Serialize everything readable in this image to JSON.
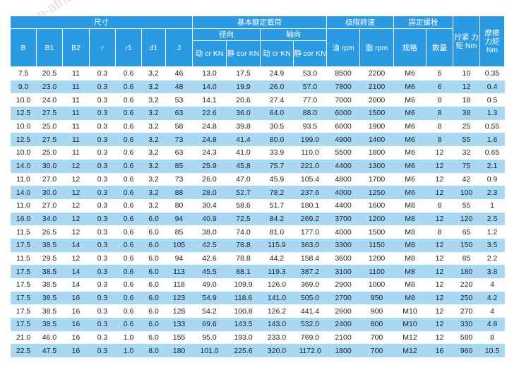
{
  "watermark": "cn-africa.com",
  "header": {
    "group_size": "尺寸",
    "group_load": "基本额定载荷",
    "group_speed": "极限转速",
    "group_bolt": "固定螺栓",
    "radial": "径向",
    "axial": "轴向",
    "col_B": "B",
    "col_B1": "B1",
    "col_B2": "B2",
    "col_r": "r",
    "col_r1": "r1",
    "col_d1": "d1",
    "col_J": "J",
    "dyn_radial": "动 cr KN",
    "static_radial": "静 cor KN",
    "dyn_axial": "动 cr KN",
    "static_axial": "静 cor KN",
    "oil": "油 rpm",
    "grease": "脂 rpm",
    "spec": "规格",
    "count": "数量",
    "torque": "拧紧 力矩 Nm",
    "friction": "摩擦 力矩 Nm"
  },
  "rows": [
    [
      "7.5",
      "20.5",
      "11",
      "0.3",
      "0.6",
      "3.2",
      "46",
      "13.0",
      "17.5",
      "24.9",
      "53.0",
      "8500",
      "2200",
      "M6",
      "6",
      "10",
      "0.35"
    ],
    [
      "9.0",
      "23.0",
      "11",
      "0.3",
      "0.6",
      "3.2",
      "48",
      "14.0",
      "19.9",
      "26.0",
      "57.0",
      "7800",
      "2100",
      "M6",
      "6",
      "12",
      "0.4"
    ],
    [
      "10.0",
      "24.0",
      "11",
      "0.3",
      "0.6",
      "3.2",
      "53",
      "14.1",
      "20.6",
      "27.4",
      "77.0",
      "7000",
      "2000",
      "M6",
      "8",
      "18",
      "0.5"
    ],
    [
      "12.5",
      "27.5",
      "11",
      "0.3",
      "0.6",
      "3.2",
      "63",
      "22.6",
      "36.0",
      "64.0",
      "88.0",
      "6000",
      "1500",
      "M6",
      "8",
      "38",
      "1.3"
    ],
    [
      "10.0",
      "25.0",
      "11",
      "0.3",
      "0.6",
      "3.2",
      "58",
      "24.8",
      "39.8",
      "30.5",
      "93.5",
      "6000",
      "1900",
      "M6",
      "8",
      "25",
      "0.55"
    ],
    [
      "12.5",
      "27.5",
      "11",
      "0.3",
      "0.6",
      "3.2",
      "73",
      "24.8",
      "41.4",
      "80.0",
      "199.0",
      "4900",
      "1400",
      "M6",
      "8",
      "55",
      "1.6"
    ],
    [
      "10.0",
      "25.0",
      "11",
      "0.3",
      "0.6",
      "3.2",
      "63",
      "24.3",
      "41.0",
      "33.9",
      "110.0",
      "5500",
      "1800",
      "M6",
      "12",
      "32",
      "0.65"
    ],
    [
      "14.0",
      "30.0",
      "12",
      "0.3",
      "0.6",
      "3.2",
      "85",
      "25.9",
      "45.8",
      "75.7",
      "221.0",
      "4400",
      "1300",
      "M6",
      "12",
      "75",
      "2.1"
    ],
    [
      "11.0",
      "27.0",
      "12",
      "0.3",
      "0.6",
      "3.2",
      "73",
      "26.0",
      "47.0",
      "45.9",
      "105.4",
      "4800",
      "1700",
      "M6",
      "12",
      "42",
      "0.9"
    ],
    [
      "14.0",
      "30.0",
      "12",
      "0.3",
      "0.6",
      "3.2",
      "88",
      "28.0",
      "52.7",
      "78.2",
      "237.6",
      "4000",
      "1250",
      "M6",
      "12",
      "100",
      "2.3"
    ],
    [
      "11.0",
      "27.0",
      "12",
      "0.3",
      "0.6",
      "3.2",
      "80",
      "30.4",
      "58.6",
      "51.7",
      "180.1",
      "4400",
      "1600",
      "M8",
      "8",
      "55",
      "1"
    ],
    [
      "16.0",
      "34.0",
      "12",
      "0.3",
      "0.6",
      "6.0",
      "94",
      "40.9",
      "72.5",
      "84.2",
      "269.2",
      "3700",
      "1200",
      "M8",
      "12",
      "120",
      "2.5"
    ],
    [
      "11.5",
      "26.5",
      "12",
      "0.3",
      "0.6",
      "6.0",
      "85",
      "38.0",
      "74.0",
      "81.0",
      "177.0",
      "4000",
      "1500",
      "M8",
      "8",
      "65",
      "1.2"
    ],
    [
      "17.5",
      "38.5",
      "14",
      "0.3",
      "0.6",
      "6.0",
      "105",
      "42.5",
      "78.8",
      "115.9",
      "363.0",
      "3300",
      "1150",
      "M8",
      "12",
      "150",
      "3.5"
    ],
    [
      "11.5",
      "29.5",
      "12",
      "0.3",
      "0.6",
      "6.0",
      "94",
      "42.6",
      "78.8",
      "44.2",
      "158.4",
      "3600",
      "1200",
      "M8",
      "12",
      "85",
      "2.2"
    ],
    [
      "17.5",
      "38.5",
      "14",
      "0.3",
      "0.6",
      "6.0",
      "113",
      "45.5",
      "88.1",
      "119.3",
      "387.2",
      "3100",
      "1100",
      "M8",
      "12",
      "180",
      "3.8"
    ],
    [
      "17.5",
      "38.5",
      "14",
      "0.3",
      "0.6",
      "6.0",
      "118",
      "49.0",
      "109.9",
      "126.0",
      "369.0",
      "2900",
      "1000",
      "M8",
      "12",
      "220",
      "4"
    ],
    [
      "17.5",
      "38.5",
      "16",
      "0.3",
      "0.6",
      "6.0",
      "123",
      "54.9",
      "118.6",
      "141.0",
      "505.0",
      "2700",
      "950",
      "M8",
      "12",
      "250",
      "4.2"
    ],
    [
      "17.5",
      "38.5",
      "16",
      "0.3",
      "0.6",
      "6.0",
      "128",
      "54.2",
      "100.8",
      "126.2",
      "441.4",
      "2600",
      "900",
      "M10",
      "12",
      "270",
      "4"
    ],
    [
      "17.5",
      "38.5",
      "16",
      "0.3",
      "0.6",
      "6.0",
      "133",
      "69.6",
      "143.5",
      "143.0",
      "532.0",
      "2400",
      "800",
      "M10",
      "12",
      "330",
      "4.8"
    ],
    [
      "21.0",
      "46.0",
      "16",
      "0.3",
      "1.0",
      "6.0",
      "155",
      "95.0",
      "193.0",
      "233.0",
      "769.0",
      "2100",
      "700",
      "M12",
      "12",
      "580",
      "8"
    ],
    [
      "22.5",
      "47.5",
      "16",
      "0.3",
      "1.0",
      "8.0",
      "180",
      "101.0",
      "225.6",
      "320.0",
      "1172.0",
      "1800",
      "700",
      "M12",
      "16",
      "960",
      "10.5"
    ]
  ]
}
